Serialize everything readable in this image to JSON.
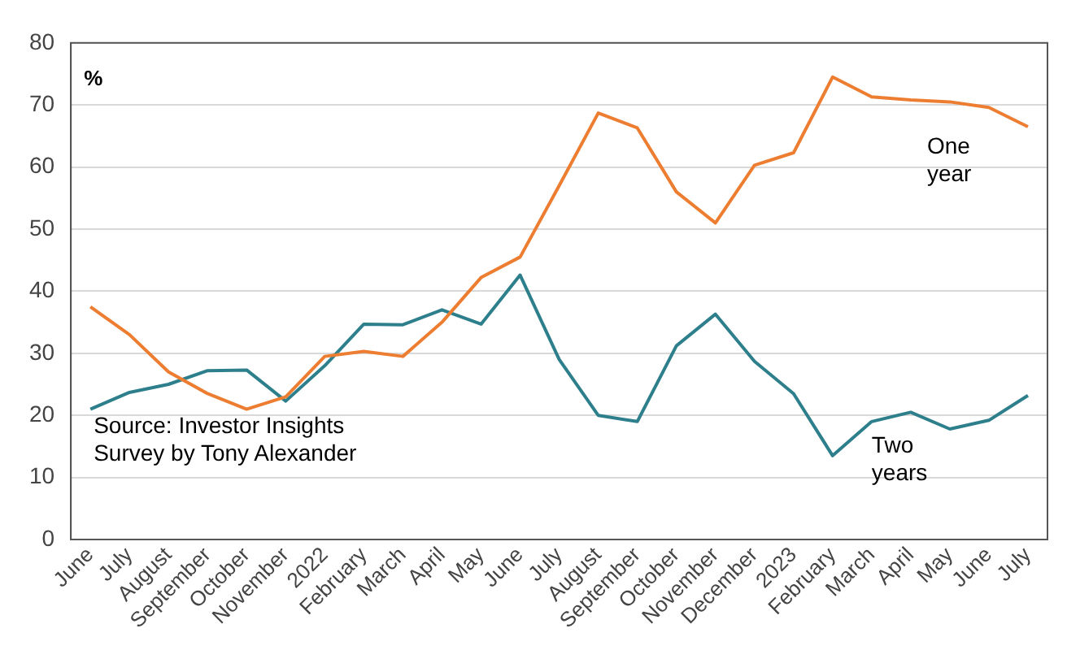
{
  "chart_data": {
    "type": "line",
    "ylabel": "%",
    "categories": [
      "June",
      "July",
      "August",
      "September",
      "October",
      "November",
      "2022",
      "February",
      "March",
      "April",
      "May",
      "June",
      "July",
      "August",
      "September",
      "October",
      "November",
      "December",
      "2023",
      "February",
      "March",
      "April",
      "May",
      "June",
      "July"
    ],
    "series": [
      {
        "name": "One year",
        "color": "#ed7d31",
        "values": [
          37.5,
          33,
          27,
          23.5,
          21,
          23,
          29.5,
          30.3,
          29.5,
          35,
          42.2,
          45.5,
          57,
          68.7,
          66.3,
          56,
          51,
          60.3,
          62.3,
          74.5,
          71.3,
          70.8,
          70.5,
          69.6,
          66.5
        ]
      },
      {
        "name": "Two years",
        "color": "#2e7f8c",
        "values": [
          21,
          23.7,
          25,
          27.2,
          27.3,
          22.3,
          28,
          34.7,
          34.6,
          37,
          34.7,
          42.6,
          29,
          20,
          19,
          31.2,
          36.3,
          28.7,
          23.5,
          13.5,
          19,
          20.5,
          17.8,
          19.2,
          23.2
        ]
      }
    ],
    "ylim": [
      0,
      80
    ],
    "yticks": [
      0,
      10,
      20,
      30,
      40,
      50,
      60,
      70,
      80
    ],
    "grid": "y",
    "legend": false,
    "marker": "none",
    "line_style": "solid",
    "annotations": [
      "Source: Investor Insights Survey by Tony Alexander"
    ]
  }
}
